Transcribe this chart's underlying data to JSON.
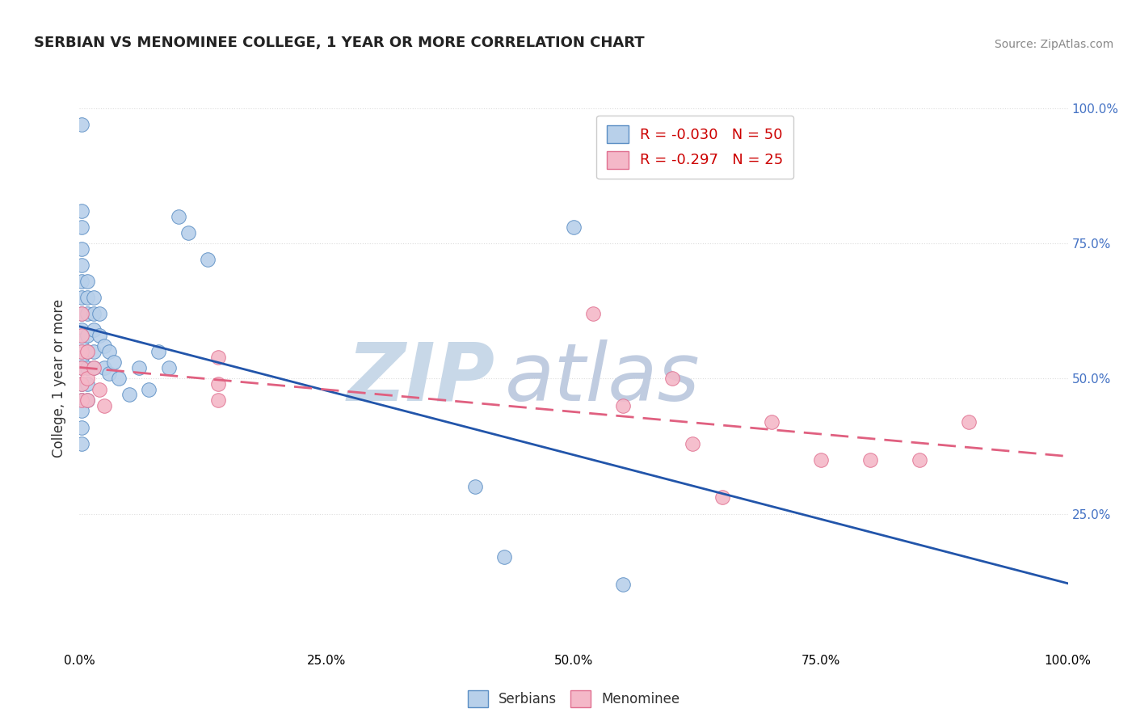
{
  "title": "SERBIAN VS MENOMINEE COLLEGE, 1 YEAR OR MORE CORRELATION CHART",
  "source_text": "Source: ZipAtlas.com",
  "ylabel": "College, 1 year or more",
  "xlim": [
    0.0,
    1.0
  ],
  "ylim": [
    0.0,
    1.0
  ],
  "xtick_vals": [
    0.0,
    0.25,
    0.5,
    0.75,
    1.0
  ],
  "ytick_vals": [
    0.25,
    0.5,
    0.75,
    1.0
  ],
  "serbian_color": "#b8d0ea",
  "menominee_color": "#f4b8c8",
  "serbian_edge_color": "#5b8ec4",
  "menominee_edge_color": "#e07090",
  "serbian_line_color": "#2255aa",
  "menominee_line_color": "#e06080",
  "serbian_R": -0.03,
  "serbian_N": 50,
  "menominee_R": -0.297,
  "menominee_N": 25,
  "right_tick_color": "#4472c4",
  "grid_color": "#dddddd",
  "watermark_zip_color": "#c8d8e8",
  "watermark_atlas_color": "#c0cce0",
  "serbian_points": [
    [
      0.002,
      0.97
    ],
    [
      0.002,
      0.81
    ],
    [
      0.002,
      0.78
    ],
    [
      0.002,
      0.74
    ],
    [
      0.002,
      0.71
    ],
    [
      0.002,
      0.68
    ],
    [
      0.002,
      0.65
    ],
    [
      0.002,
      0.62
    ],
    [
      0.002,
      0.59
    ],
    [
      0.002,
      0.57
    ],
    [
      0.002,
      0.54
    ],
    [
      0.002,
      0.52
    ],
    [
      0.002,
      0.49
    ],
    [
      0.002,
      0.46
    ],
    [
      0.002,
      0.44
    ],
    [
      0.002,
      0.41
    ],
    [
      0.002,
      0.38
    ],
    [
      0.008,
      0.68
    ],
    [
      0.008,
      0.65
    ],
    [
      0.008,
      0.62
    ],
    [
      0.008,
      0.58
    ],
    [
      0.008,
      0.55
    ],
    [
      0.008,
      0.52
    ],
    [
      0.008,
      0.49
    ],
    [
      0.008,
      0.46
    ],
    [
      0.014,
      0.65
    ],
    [
      0.014,
      0.62
    ],
    [
      0.014,
      0.59
    ],
    [
      0.014,
      0.55
    ],
    [
      0.014,
      0.52
    ],
    [
      0.02,
      0.62
    ],
    [
      0.02,
      0.58
    ],
    [
      0.025,
      0.56
    ],
    [
      0.025,
      0.52
    ],
    [
      0.03,
      0.55
    ],
    [
      0.03,
      0.51
    ],
    [
      0.035,
      0.53
    ],
    [
      0.04,
      0.5
    ],
    [
      0.05,
      0.47
    ],
    [
      0.06,
      0.52
    ],
    [
      0.07,
      0.48
    ],
    [
      0.08,
      0.55
    ],
    [
      0.09,
      0.52
    ],
    [
      0.1,
      0.8
    ],
    [
      0.11,
      0.77
    ],
    [
      0.13,
      0.72
    ],
    [
      0.4,
      0.3
    ],
    [
      0.43,
      0.17
    ],
    [
      0.5,
      0.78
    ],
    [
      0.55,
      0.12
    ]
  ],
  "menominee_points": [
    [
      0.002,
      0.62
    ],
    [
      0.002,
      0.58
    ],
    [
      0.002,
      0.55
    ],
    [
      0.002,
      0.52
    ],
    [
      0.002,
      0.49
    ],
    [
      0.002,
      0.46
    ],
    [
      0.008,
      0.55
    ],
    [
      0.008,
      0.5
    ],
    [
      0.008,
      0.46
    ],
    [
      0.014,
      0.52
    ],
    [
      0.02,
      0.48
    ],
    [
      0.025,
      0.45
    ],
    [
      0.14,
      0.54
    ],
    [
      0.14,
      0.49
    ],
    [
      0.14,
      0.46
    ],
    [
      0.52,
      0.62
    ],
    [
      0.55,
      0.45
    ],
    [
      0.6,
      0.5
    ],
    [
      0.62,
      0.38
    ],
    [
      0.65,
      0.28
    ],
    [
      0.7,
      0.42
    ],
    [
      0.75,
      0.35
    ],
    [
      0.8,
      0.35
    ],
    [
      0.85,
      0.35
    ],
    [
      0.9,
      0.42
    ]
  ]
}
